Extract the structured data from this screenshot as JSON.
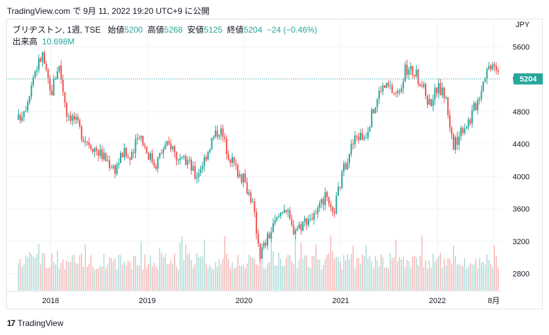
{
  "caption": "TradingView.com で 9月 11, 2022 19:20 UTC+9 に公開",
  "legend": {
    "symbol": "ブリヂストン, 1週, TSE",
    "open_label": "始値",
    "open": "5200",
    "high_label": "高値",
    "high": "5268",
    "low_label": "安値",
    "low": "5125",
    "close_label": "終値",
    "close": "5204",
    "change": "−24 (−0.46%)",
    "volume_label": "出来高",
    "volume": "10.698M"
  },
  "footer": {
    "brand": "TradingView",
    "logo_glyph": "17"
  },
  "colors": {
    "up": "#26a69a",
    "down": "#ef5350",
    "up_vol": "#a8d8d3",
    "down_vol": "#f5b2b0"
  },
  "chart_data": {
    "type": "candlestick",
    "currency": "JPY",
    "ylim": [
      2600,
      5700
    ],
    "y_ticks": [
      2800,
      3200,
      3600,
      4000,
      4400,
      4800,
      5200,
      5600
    ],
    "last_price": 5204,
    "x_tick_labels": [
      "2018",
      "2019",
      "2020",
      "2021",
      "2022",
      "8月"
    ],
    "grid": true,
    "anchors": [
      {
        "t": "2017-09",
        "v": 4700
      },
      {
        "t": "2017-10",
        "v": 4900
      },
      {
        "t": "2017-11",
        "v": 5300
      },
      {
        "t": "2017-12",
        "v": 5500
      },
      {
        "t": "2018-01",
        "v": 5000
      },
      {
        "t": "2018-02",
        "v": 5400
      },
      {
        "t": "2018-03",
        "v": 4800
      },
      {
        "t": "2018-04",
        "v": 4700
      },
      {
        "t": "2018-05",
        "v": 4500
      },
      {
        "t": "2018-06",
        "v": 4400
      },
      {
        "t": "2018-08",
        "v": 4200
      },
      {
        "t": "2018-09",
        "v": 4100
      },
      {
        "t": "2018-10",
        "v": 4300
      },
      {
        "t": "2018-11",
        "v": 4200
      },
      {
        "t": "2018-12",
        "v": 4550
      },
      {
        "t": "2019-01",
        "v": 4300
      },
      {
        "t": "2019-02",
        "v": 4150
      },
      {
        "t": "2019-03",
        "v": 4350
      },
      {
        "t": "2019-04",
        "v": 4400
      },
      {
        "t": "2019-05",
        "v": 4150
      },
      {
        "t": "2019-06",
        "v": 4200
      },
      {
        "t": "2019-07",
        "v": 4000
      },
      {
        "t": "2019-08",
        "v": 4200
      },
      {
        "t": "2019-09",
        "v": 4450
      },
      {
        "t": "2019-10",
        "v": 4600
      },
      {
        "t": "2019-11",
        "v": 4300
      },
      {
        "t": "2019-12",
        "v": 4100
      },
      {
        "t": "2020-01",
        "v": 3950
      },
      {
        "t": "2020-02",
        "v": 3700
      },
      {
        "t": "2020-03",
        "v": 3050
      },
      {
        "t": "2020-04",
        "v": 3250
      },
      {
        "t": "2020-05",
        "v": 3450
      },
      {
        "t": "2020-06",
        "v": 3650
      },
      {
        "t": "2020-07",
        "v": 3350
      },
      {
        "t": "2020-08",
        "v": 3400
      },
      {
        "t": "2020-09",
        "v": 3500
      },
      {
        "t": "2020-10",
        "v": 3500
      },
      {
        "t": "2020-11",
        "v": 3750
      },
      {
        "t": "2020-12",
        "v": 3500
      },
      {
        "t": "2021-01",
        "v": 3950
      },
      {
        "t": "2021-02",
        "v": 4300
      },
      {
        "t": "2021-03",
        "v": 4500
      },
      {
        "t": "2021-04",
        "v": 4500
      },
      {
        "t": "2021-05",
        "v": 4800
      },
      {
        "t": "2021-06",
        "v": 5100
      },
      {
        "t": "2021-07",
        "v": 5100
      },
      {
        "t": "2021-08",
        "v": 5000
      },
      {
        "t": "2021-09",
        "v": 5300
      },
      {
        "t": "2021-10",
        "v": 5300
      },
      {
        "t": "2021-11",
        "v": 5150
      },
      {
        "t": "2021-12",
        "v": 4900
      },
      {
        "t": "2022-01",
        "v": 5100
      },
      {
        "t": "2022-02",
        "v": 5000
      },
      {
        "t": "2022-03",
        "v": 4350
      },
      {
        "t": "2022-04",
        "v": 4600
      },
      {
        "t": "2022-05",
        "v": 4700
      },
      {
        "t": "2022-06",
        "v": 4950
      },
      {
        "t": "2022-07",
        "v": 5300
      },
      {
        "t": "2022-08",
        "v": 5450
      },
      {
        "t": "2022-09",
        "v": 5204
      }
    ]
  }
}
